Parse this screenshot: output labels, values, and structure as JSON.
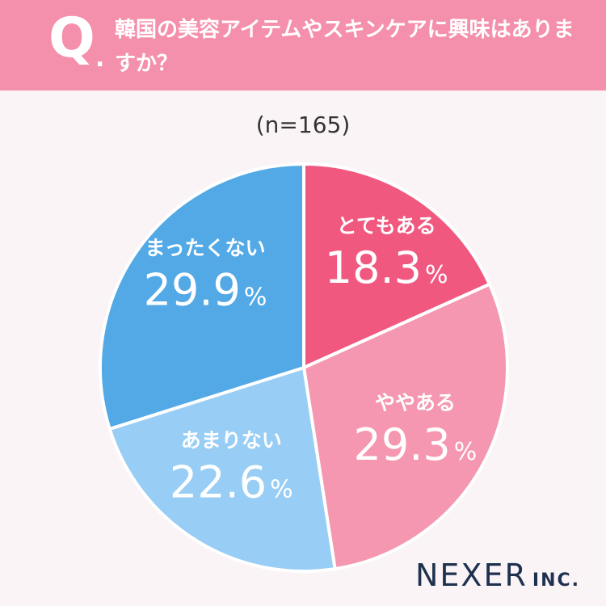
{
  "header": {
    "q_mark": "Q",
    "q_dot": ".",
    "question": "韓国の美容アイテムやスキンケアに興味はありますか？"
  },
  "sample": "(n=165)",
  "chart_data": {
    "type": "pie",
    "start_angle_deg": 0,
    "direction": "clockwise",
    "slices": [
      {
        "label": "とてもある",
        "value": 18.3,
        "color": "#f0587f"
      },
      {
        "label": "ややある",
        "value": 29.3,
        "color": "#f597b0"
      },
      {
        "label": "あまりない",
        "value": 22.6,
        "color": "#98cdf5"
      },
      {
        "label": "まったくない",
        "value": 29.9,
        "color": "#52a9e6"
      }
    ],
    "value_suffix": "%"
  },
  "logo": {
    "main": "NEXER",
    "sub": "INC."
  }
}
